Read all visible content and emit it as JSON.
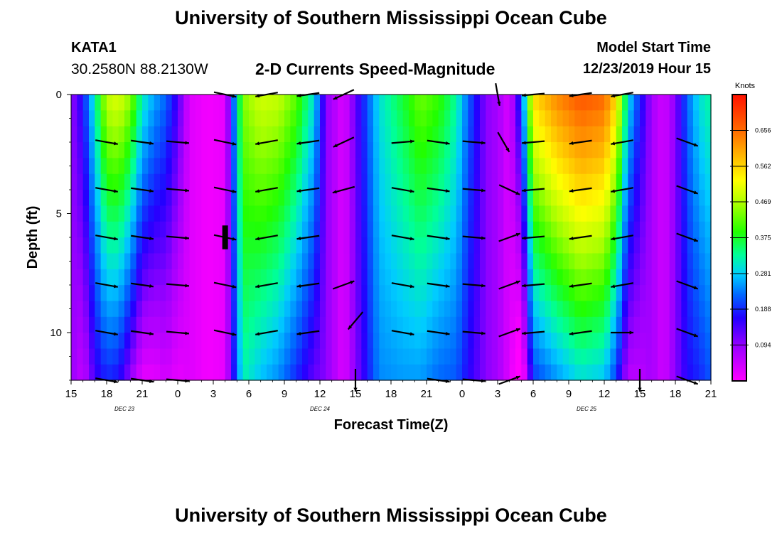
{
  "header": {
    "title": "University of Southern Mississippi Ocean Cube",
    "footer_title": "University of Southern Mississippi Ocean Cube",
    "station_id": "KATA1",
    "station_coords": "30.2580N 88.2130W",
    "chart_title": "2-D Currents Speed-Magnitude",
    "model_start_label": "Model Start Time",
    "model_start_value": "12/23/2019 Hour 15"
  },
  "chart_data": {
    "type": "heatmap",
    "title": "2-D Currents Speed-Magnitude",
    "xlabel": "Forecast Time(Z)",
    "ylabel": "Depth (ft)",
    "x_ticks": [
      "15",
      "18",
      "21",
      "0",
      "3",
      "6",
      "9",
      "12",
      "15",
      "18",
      "21",
      "0",
      "3",
      "6",
      "9",
      "12",
      "15",
      "18",
      "21"
    ],
    "x_range_hours": [
      0,
      54
    ],
    "date_labels": [
      {
        "label": "DEC 23",
        "hour": 4.5
      },
      {
        "label": "DEC 24",
        "hour": 21
      },
      {
        "label": "DEC 25",
        "hour": 43.5
      }
    ],
    "y_ticks": [
      "0",
      "5",
      "10"
    ],
    "ylim": [
      0,
      12
    ],
    "colorbar": {
      "unit": "Knots",
      "labels": [
        "0.656",
        "0.562",
        "0.469",
        "0.375",
        "0.281",
        "0.188",
        "0.094"
      ],
      "range": [
        0,
        0.75
      ]
    },
    "speed_profile": [
      {
        "t": 0,
        "s": 0.09,
        "d": 0.0
      },
      {
        "t": 1,
        "s": 0.17,
        "d": 0.01
      },
      {
        "t": 2,
        "s": 0.32,
        "d": 0.015
      },
      {
        "t": 3,
        "s": 0.48,
        "d": 0.025
      },
      {
        "t": 4,
        "s": 0.5,
        "d": 0.028
      },
      {
        "t": 5,
        "s": 0.45,
        "d": 0.03
      },
      {
        "t": 6,
        "s": 0.32,
        "d": 0.025
      },
      {
        "t": 7,
        "s": 0.26,
        "d": 0.02
      },
      {
        "t": 8,
        "s": 0.22,
        "d": 0.015
      },
      {
        "t": 9,
        "s": 0.14,
        "d": 0.01
      },
      {
        "t": 10,
        "s": 0.03,
        "d": 0.0
      },
      {
        "t": 11.5,
        "s": 0.01,
        "d": 0.0
      },
      {
        "t": 13,
        "s": 0.02,
        "d": 0.0
      },
      {
        "t": 14.5,
        "s": 0.44,
        "d": 0.01
      },
      {
        "t": 16,
        "s": 0.49,
        "d": 0.018
      },
      {
        "t": 17.5,
        "s": 0.48,
        "d": 0.02
      },
      {
        "t": 19,
        "s": 0.42,
        "d": 0.02
      },
      {
        "t": 20.5,
        "s": 0.3,
        "d": 0.015
      },
      {
        "t": 21.5,
        "s": 0.1,
        "d": 0.0
      },
      {
        "t": 23,
        "s": 0.03,
        "d": 0.0
      },
      {
        "t": 26,
        "s": 0.3,
        "d": 0.005
      },
      {
        "t": 28,
        "s": 0.37,
        "d": 0.01
      },
      {
        "t": 29.5,
        "s": 0.43,
        "d": 0.015
      },
      {
        "t": 31,
        "s": 0.4,
        "d": 0.015
      },
      {
        "t": 32.5,
        "s": 0.33,
        "d": 0.01
      },
      {
        "t": 33.5,
        "s": 0.22,
        "d": 0.005
      },
      {
        "t": 35,
        "s": 0.1,
        "d": 0.0
      },
      {
        "t": 36,
        "s": 0.08,
        "d": 0.0
      },
      {
        "t": 37,
        "s": 0.03,
        "d": 0.0
      },
      {
        "t": 38,
        "s": 0.2,
        "d": 0.02
      },
      {
        "t": 39,
        "s": 0.55,
        "d": 0.03
      },
      {
        "t": 41,
        "s": 0.63,
        "d": 0.032
      },
      {
        "t": 43,
        "s": 0.68,
        "d": 0.032
      },
      {
        "t": 45,
        "s": 0.66,
        "d": 0.032
      },
      {
        "t": 46,
        "s": 0.55,
        "d": 0.03
      },
      {
        "t": 47,
        "s": 0.3,
        "d": 0.02
      },
      {
        "t": 48,
        "s": 0.18,
        "d": 0.01
      },
      {
        "t": 49,
        "s": 0.08,
        "d": 0.0
      },
      {
        "t": 50,
        "s": 0.04,
        "d": 0.0
      },
      {
        "t": 51,
        "s": 0.1,
        "d": 0.0
      },
      {
        "t": 52,
        "s": 0.22,
        "d": 0.005
      },
      {
        "t": 53,
        "s": 0.3,
        "d": 0.01
      },
      {
        "t": 54,
        "s": 0.33,
        "d": 0.01
      }
    ],
    "vector_depths": [
      0,
      2,
      4,
      6,
      8,
      10,
      12
    ],
    "vector_columns": [
      {
        "t": 3,
        "angle": -10,
        "depths": [
          2,
          4,
          6,
          8,
          10,
          12
        ]
      },
      {
        "t": 6,
        "angle": -8,
        "depths": [
          2,
          4,
          6,
          8,
          10,
          12
        ]
      },
      {
        "t": 9,
        "angle": -5,
        "depths": [
          2,
          4,
          6,
          8,
          10,
          12
        ]
      },
      {
        "t": 13,
        "angle": -12,
        "depths": [
          0,
          2,
          4,
          6,
          8,
          10
        ]
      },
      {
        "t": 16.5,
        "angle": 190,
        "depths": [
          0,
          2,
          4,
          6,
          8,
          10
        ]
      },
      {
        "t": 20,
        "angle": 188,
        "depths": [
          0,
          2,
          4,
          6,
          8,
          10
        ]
      },
      {
        "t": 23,
        "angle": 205,
        "depths": [
          0,
          2
        ]
      },
      {
        "t": 23,
        "angle": 195,
        "depths": [
          4
        ]
      },
      {
        "t": 23,
        "angle": 20,
        "depths": [
          8
        ]
      },
      {
        "t": 24,
        "angle": -130,
        "depths": [
          9.5
        ]
      },
      {
        "t": 24,
        "angle": -90,
        "depths": [
          12
        ]
      },
      {
        "t": 28,
        "angle": -10,
        "depths": [
          4,
          6,
          8,
          10
        ]
      },
      {
        "t": 28,
        "angle": 5,
        "depths": [
          2
        ]
      },
      {
        "t": 31,
        "angle": -8,
        "depths": [
          2,
          4,
          6,
          8,
          10,
          12
        ]
      },
      {
        "t": 34,
        "angle": -5,
        "depths": [
          2,
          4,
          6,
          8,
          10,
          12
        ]
      },
      {
        "t": 36,
        "angle": -80,
        "depths": [
          0
        ]
      },
      {
        "t": 36.5,
        "angle": -60,
        "depths": [
          2
        ]
      },
      {
        "t": 37,
        "angle": -25,
        "depths": [
          4
        ]
      },
      {
        "t": 37,
        "angle": 20,
        "depths": [
          6,
          8,
          10,
          12
        ]
      },
      {
        "t": 39,
        "angle": 185,
        "depths": [
          0,
          2,
          4,
          6,
          8,
          10
        ]
      },
      {
        "t": 43,
        "angle": 188,
        "depths": [
          0,
          2,
          4,
          6,
          8,
          10
        ]
      },
      {
        "t": 46.5,
        "angle": 190,
        "depths": [
          0,
          2,
          4,
          6,
          8
        ]
      },
      {
        "t": 46.5,
        "angle": 0,
        "depths": [
          10
        ]
      },
      {
        "t": 48,
        "angle": -90,
        "depths": [
          12
        ]
      },
      {
        "t": 52,
        "angle": -20,
        "depths": [
          2,
          4,
          6,
          8,
          10,
          12
        ]
      }
    ],
    "marker": {
      "t": 13,
      "depth_range": [
        5.5,
        6.5
      ]
    }
  }
}
